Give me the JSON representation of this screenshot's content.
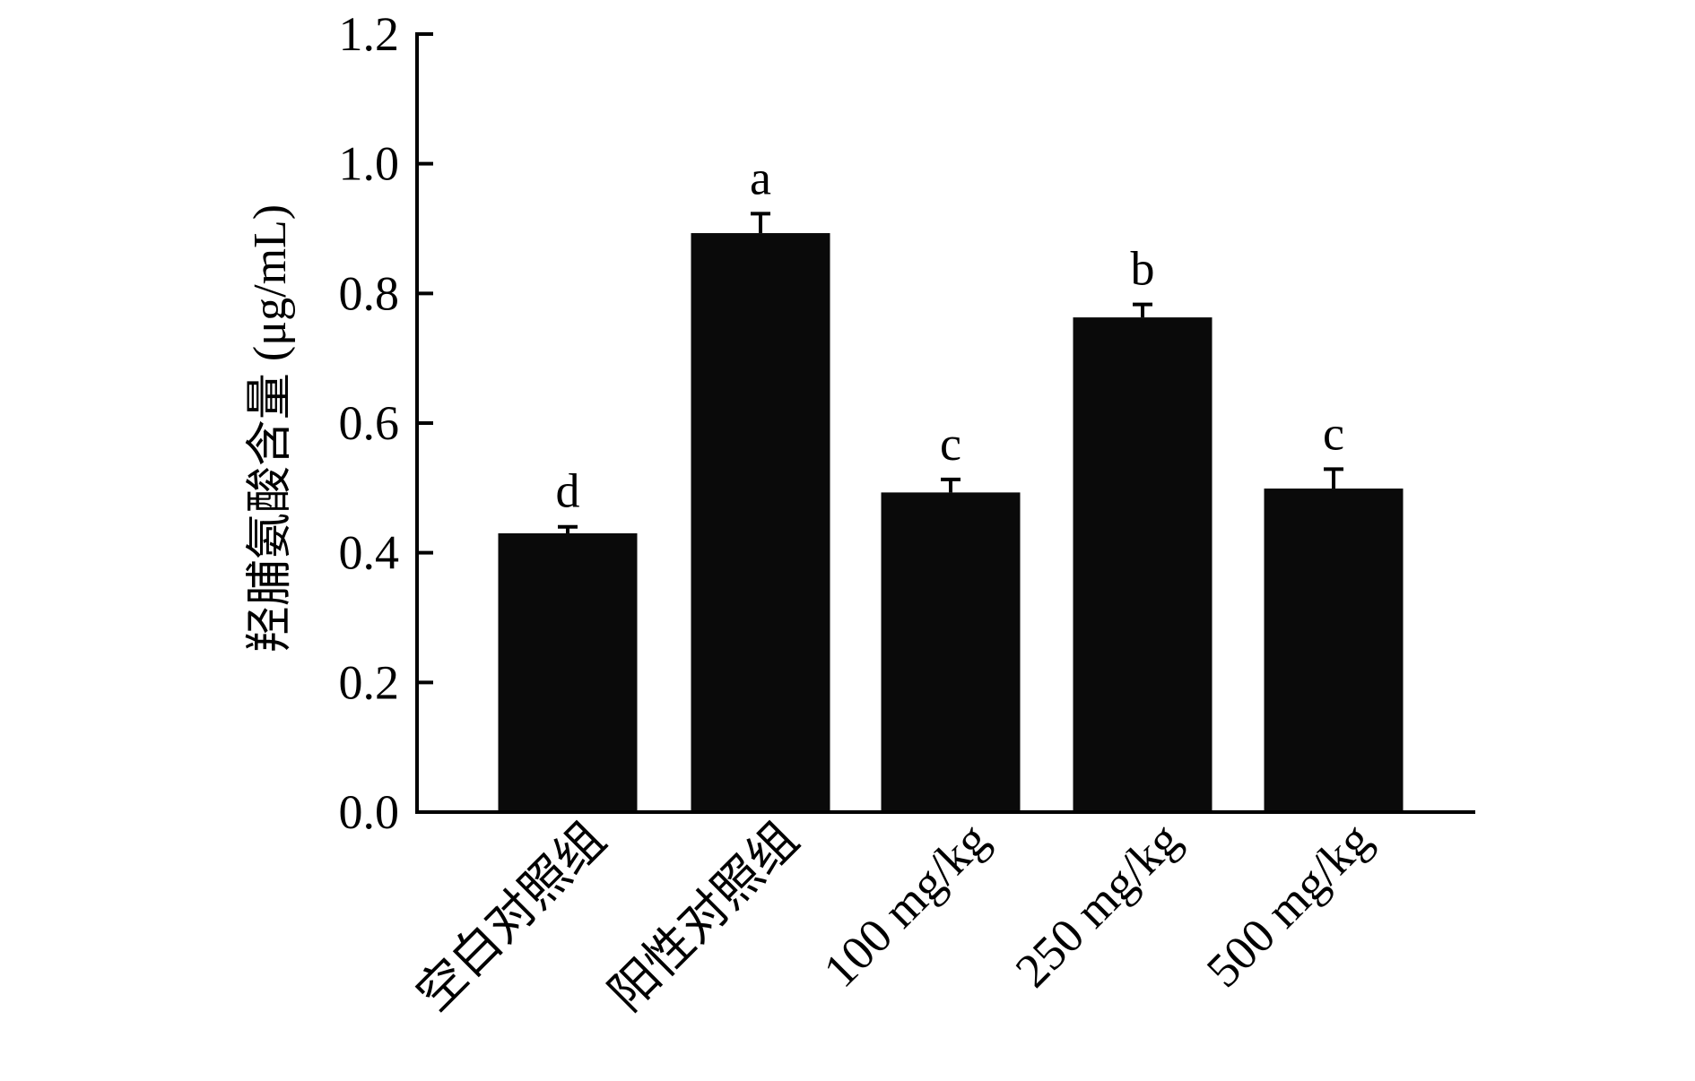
{
  "colors": {
    "bar": "#0a0a0a",
    "axis": "#000000",
    "background": "#ffffff"
  },
  "chart_data": {
    "type": "bar",
    "title": "",
    "xlabel": "",
    "ylabel": "羟脯氨酸含量 (μg/mL)",
    "categories": [
      "空白对照组",
      "阳性对照组",
      "100 mg/kg",
      "250 mg/kg",
      "500 mg/kg"
    ],
    "values": [
      0.43,
      0.893,
      0.493,
      0.763,
      0.499
    ],
    "errors": [
      0.01,
      0.03,
      0.02,
      0.02,
      0.03
    ],
    "significance": [
      "d",
      "a",
      "c",
      "b",
      "c"
    ],
    "ylim": [
      0,
      1.2
    ],
    "yticks": [
      "0.0",
      "0.2",
      "0.4",
      "0.6",
      "0.8",
      "1.0",
      "1.2"
    ],
    "grid": false,
    "legend": "none"
  }
}
